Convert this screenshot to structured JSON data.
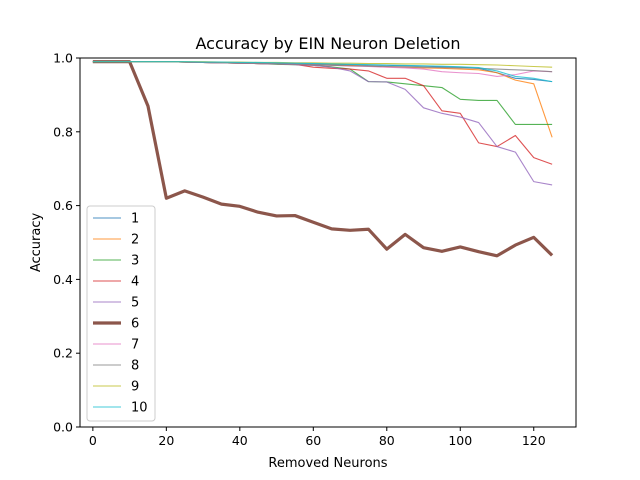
{
  "chart_data": {
    "type": "line",
    "title": "Accuracy by EIN Neuron Deletion",
    "xlabel": "Removed Neurons",
    "ylabel": "Accuracy",
    "xlim": [
      -3.5,
      131.5
    ],
    "ylim": [
      0.0,
      1.0
    ],
    "xticks": [
      0,
      20,
      40,
      60,
      80,
      100,
      120
    ],
    "yticks": [
      0.0,
      0.2,
      0.4,
      0.6,
      0.8,
      1.0
    ],
    "grid": false,
    "legend_position": "lower-left",
    "x": [
      0,
      5,
      10,
      15,
      20,
      25,
      30,
      35,
      40,
      45,
      50,
      55,
      60,
      65,
      70,
      75,
      80,
      85,
      90,
      95,
      100,
      105,
      110,
      115,
      120,
      125
    ],
    "series": [
      {
        "name": "1",
        "color": "#1f77b4",
        "bold": false,
        "values": [
          0.99,
          0.99,
          0.99,
          0.99,
          0.99,
          0.989,
          0.988,
          0.987,
          0.987,
          0.986,
          0.985,
          0.985,
          0.984,
          0.983,
          0.982,
          0.981,
          0.98,
          0.979,
          0.978,
          0.976,
          0.975,
          0.972,
          0.96,
          0.945,
          0.942,
          0.936
        ]
      },
      {
        "name": "2",
        "color": "#ff7f0e",
        "bold": false,
        "values": [
          0.99,
          0.99,
          0.99,
          0.99,
          0.99,
          0.989,
          0.988,
          0.987,
          0.986,
          0.985,
          0.984,
          0.983,
          0.982,
          0.981,
          0.98,
          0.978,
          0.976,
          0.975,
          0.973,
          0.972,
          0.97,
          0.968,
          0.96,
          0.94,
          0.93,
          0.785
        ]
      },
      {
        "name": "3",
        "color": "#2ca02c",
        "bold": false,
        "values": [
          0.99,
          0.99,
          0.99,
          0.99,
          0.99,
          0.989,
          0.988,
          0.987,
          0.986,
          0.985,
          0.983,
          0.982,
          0.98,
          0.976,
          0.97,
          0.936,
          0.935,
          0.93,
          0.925,
          0.92,
          0.888,
          0.885,
          0.885,
          0.82,
          0.82,
          0.82
        ]
      },
      {
        "name": "4",
        "color": "#d62728",
        "bold": false,
        "values": [
          0.99,
          0.99,
          0.99,
          0.99,
          0.99,
          0.989,
          0.988,
          0.987,
          0.986,
          0.985,
          0.984,
          0.983,
          0.975,
          0.972,
          0.97,
          0.965,
          0.945,
          0.945,
          0.925,
          0.857,
          0.85,
          0.77,
          0.76,
          0.79,
          0.73,
          0.712
        ]
      },
      {
        "name": "5",
        "color": "#9467bd",
        "bold": false,
        "values": [
          0.99,
          0.99,
          0.99,
          0.99,
          0.99,
          0.989,
          0.988,
          0.987,
          0.986,
          0.985,
          0.984,
          0.982,
          0.98,
          0.975,
          0.965,
          0.936,
          0.935,
          0.915,
          0.865,
          0.85,
          0.84,
          0.825,
          0.76,
          0.745,
          0.665,
          0.656
        ]
      },
      {
        "name": "6",
        "color": "#8c564b",
        "bold": true,
        "values": [
          0.99,
          0.99,
          0.99,
          0.87,
          0.62,
          0.64,
          0.623,
          0.604,
          0.598,
          0.582,
          0.572,
          0.573,
          0.555,
          0.537,
          0.533,
          0.536,
          0.482,
          0.522,
          0.486,
          0.476,
          0.488,
          0.475,
          0.464,
          0.493,
          0.514,
          0.465
        ]
      },
      {
        "name": "7",
        "color": "#e377c2",
        "bold": false,
        "values": [
          0.99,
          0.99,
          0.99,
          0.99,
          0.99,
          0.989,
          0.988,
          0.987,
          0.986,
          0.985,
          0.984,
          0.983,
          0.982,
          0.98,
          0.978,
          0.977,
          0.975,
          0.973,
          0.97,
          0.963,
          0.96,
          0.958,
          0.95,
          0.955,
          0.965,
          0.963
        ]
      },
      {
        "name": "8",
        "color": "#7f7f7f",
        "bold": false,
        "values": [
          0.99,
          0.99,
          0.99,
          0.99,
          0.99,
          0.989,
          0.988,
          0.987,
          0.986,
          0.985,
          0.984,
          0.983,
          0.982,
          0.98,
          0.979,
          0.978,
          0.977,
          0.976,
          0.975,
          0.974,
          0.973,
          0.972,
          0.97,
          0.968,
          0.966,
          0.963
        ]
      },
      {
        "name": "9",
        "color": "#bcbd22",
        "bold": false,
        "values": [
          0.99,
          0.99,
          0.99,
          0.99,
          0.99,
          0.99,
          0.99,
          0.989,
          0.989,
          0.988,
          0.988,
          0.987,
          0.987,
          0.986,
          0.986,
          0.985,
          0.985,
          0.984,
          0.984,
          0.983,
          0.983,
          0.982,
          0.981,
          0.979,
          0.977,
          0.975
        ]
      },
      {
        "name": "10",
        "color": "#17becf",
        "bold": false,
        "values": [
          0.99,
          0.99,
          0.99,
          0.99,
          0.99,
          0.99,
          0.989,
          0.989,
          0.988,
          0.988,
          0.987,
          0.986,
          0.985,
          0.984,
          0.983,
          0.982,
          0.981,
          0.98,
          0.979,
          0.978,
          0.976,
          0.974,
          0.965,
          0.95,
          0.945,
          0.936
        ]
      }
    ]
  }
}
